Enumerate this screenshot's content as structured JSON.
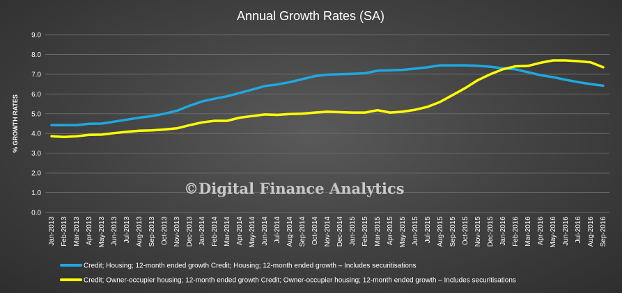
{
  "chart_data": {
    "type": "line",
    "title": "Annual Growth Rates (SA)",
    "ylabel": "% GROWTH RATES",
    "xlabel": "",
    "ylim": [
      0,
      9
    ],
    "yticks": [
      "0.0",
      "1.0",
      "2.0",
      "3.0",
      "4.0",
      "5.0",
      "6.0",
      "7.0",
      "8.0",
      "9.0"
    ],
    "grid": true,
    "legend_position": "bottom",
    "watermark": "©Digital Finance Analytics",
    "categories": [
      "Jan-2013",
      "Feb-2013",
      "Mar-2013",
      "Apr-2013",
      "May-2013",
      "Jun-2013",
      "Jul-2013",
      "Aug-2013",
      "Sep-2013",
      "Oct-2013",
      "Nov-2013",
      "Dec-2013",
      "Jan-2014",
      "Feb-2014",
      "Mar-2014",
      "Apr-2014",
      "May-2014",
      "Jun-2014",
      "Jul-2014",
      "Aug-2014",
      "Sep-2014",
      "Oct-2014",
      "Nov-2014",
      "Dec-2014",
      "Jan-2015",
      "Feb-2015",
      "Mar-2015",
      "Apr-2015",
      "May-2015",
      "Jun-2015",
      "Jul-2015",
      "Aug-2015",
      "Sep-2015",
      "Oct-2015",
      "Nov-2015",
      "Dec-2015",
      "Jan-2016",
      "Feb-2016",
      "Mar-2016",
      "Apr-2016",
      "May-2016",
      "Jun-2016",
      "Jul-2016",
      "Aug-2016",
      "Sep-2016"
    ],
    "series": [
      {
        "name": "Credit; Housing; 12-month ended growth Credit; Housing; 12-month ended growth – Includes securitisations",
        "color": "#1fa8e0",
        "values": [
          4.42,
          4.42,
          4.42,
          4.49,
          4.5,
          4.6,
          4.7,
          4.8,
          4.88,
          5.0,
          5.15,
          5.4,
          5.62,
          5.76,
          5.88,
          6.05,
          6.22,
          6.4,
          6.48,
          6.6,
          6.75,
          6.9,
          6.98,
          7.0,
          7.02,
          7.05,
          7.18,
          7.2,
          7.22,
          7.28,
          7.35,
          7.45,
          7.45,
          7.45,
          7.43,
          7.38,
          7.3,
          7.25,
          7.1,
          6.95,
          6.85,
          6.72,
          6.6,
          6.5,
          6.42
        ]
      },
      {
        "name": "Credit; Owner-occupier housing; 12-month ended growth Credit; Owner-occupier housing; 12-month ended growth – Includes securitisations",
        "color": "#ffff00",
        "values": [
          3.86,
          3.82,
          3.86,
          3.93,
          3.94,
          4.02,
          4.08,
          4.14,
          4.16,
          4.2,
          4.26,
          4.42,
          4.56,
          4.64,
          4.64,
          4.8,
          4.88,
          4.96,
          4.94,
          4.98,
          5.0,
          5.06,
          5.1,
          5.08,
          5.06,
          5.06,
          5.18,
          5.06,
          5.1,
          5.2,
          5.35,
          5.6,
          5.95,
          6.3,
          6.7,
          7.0,
          7.25,
          7.4,
          7.42,
          7.58,
          7.7,
          7.7,
          7.66,
          7.6,
          7.35
        ]
      }
    ]
  }
}
